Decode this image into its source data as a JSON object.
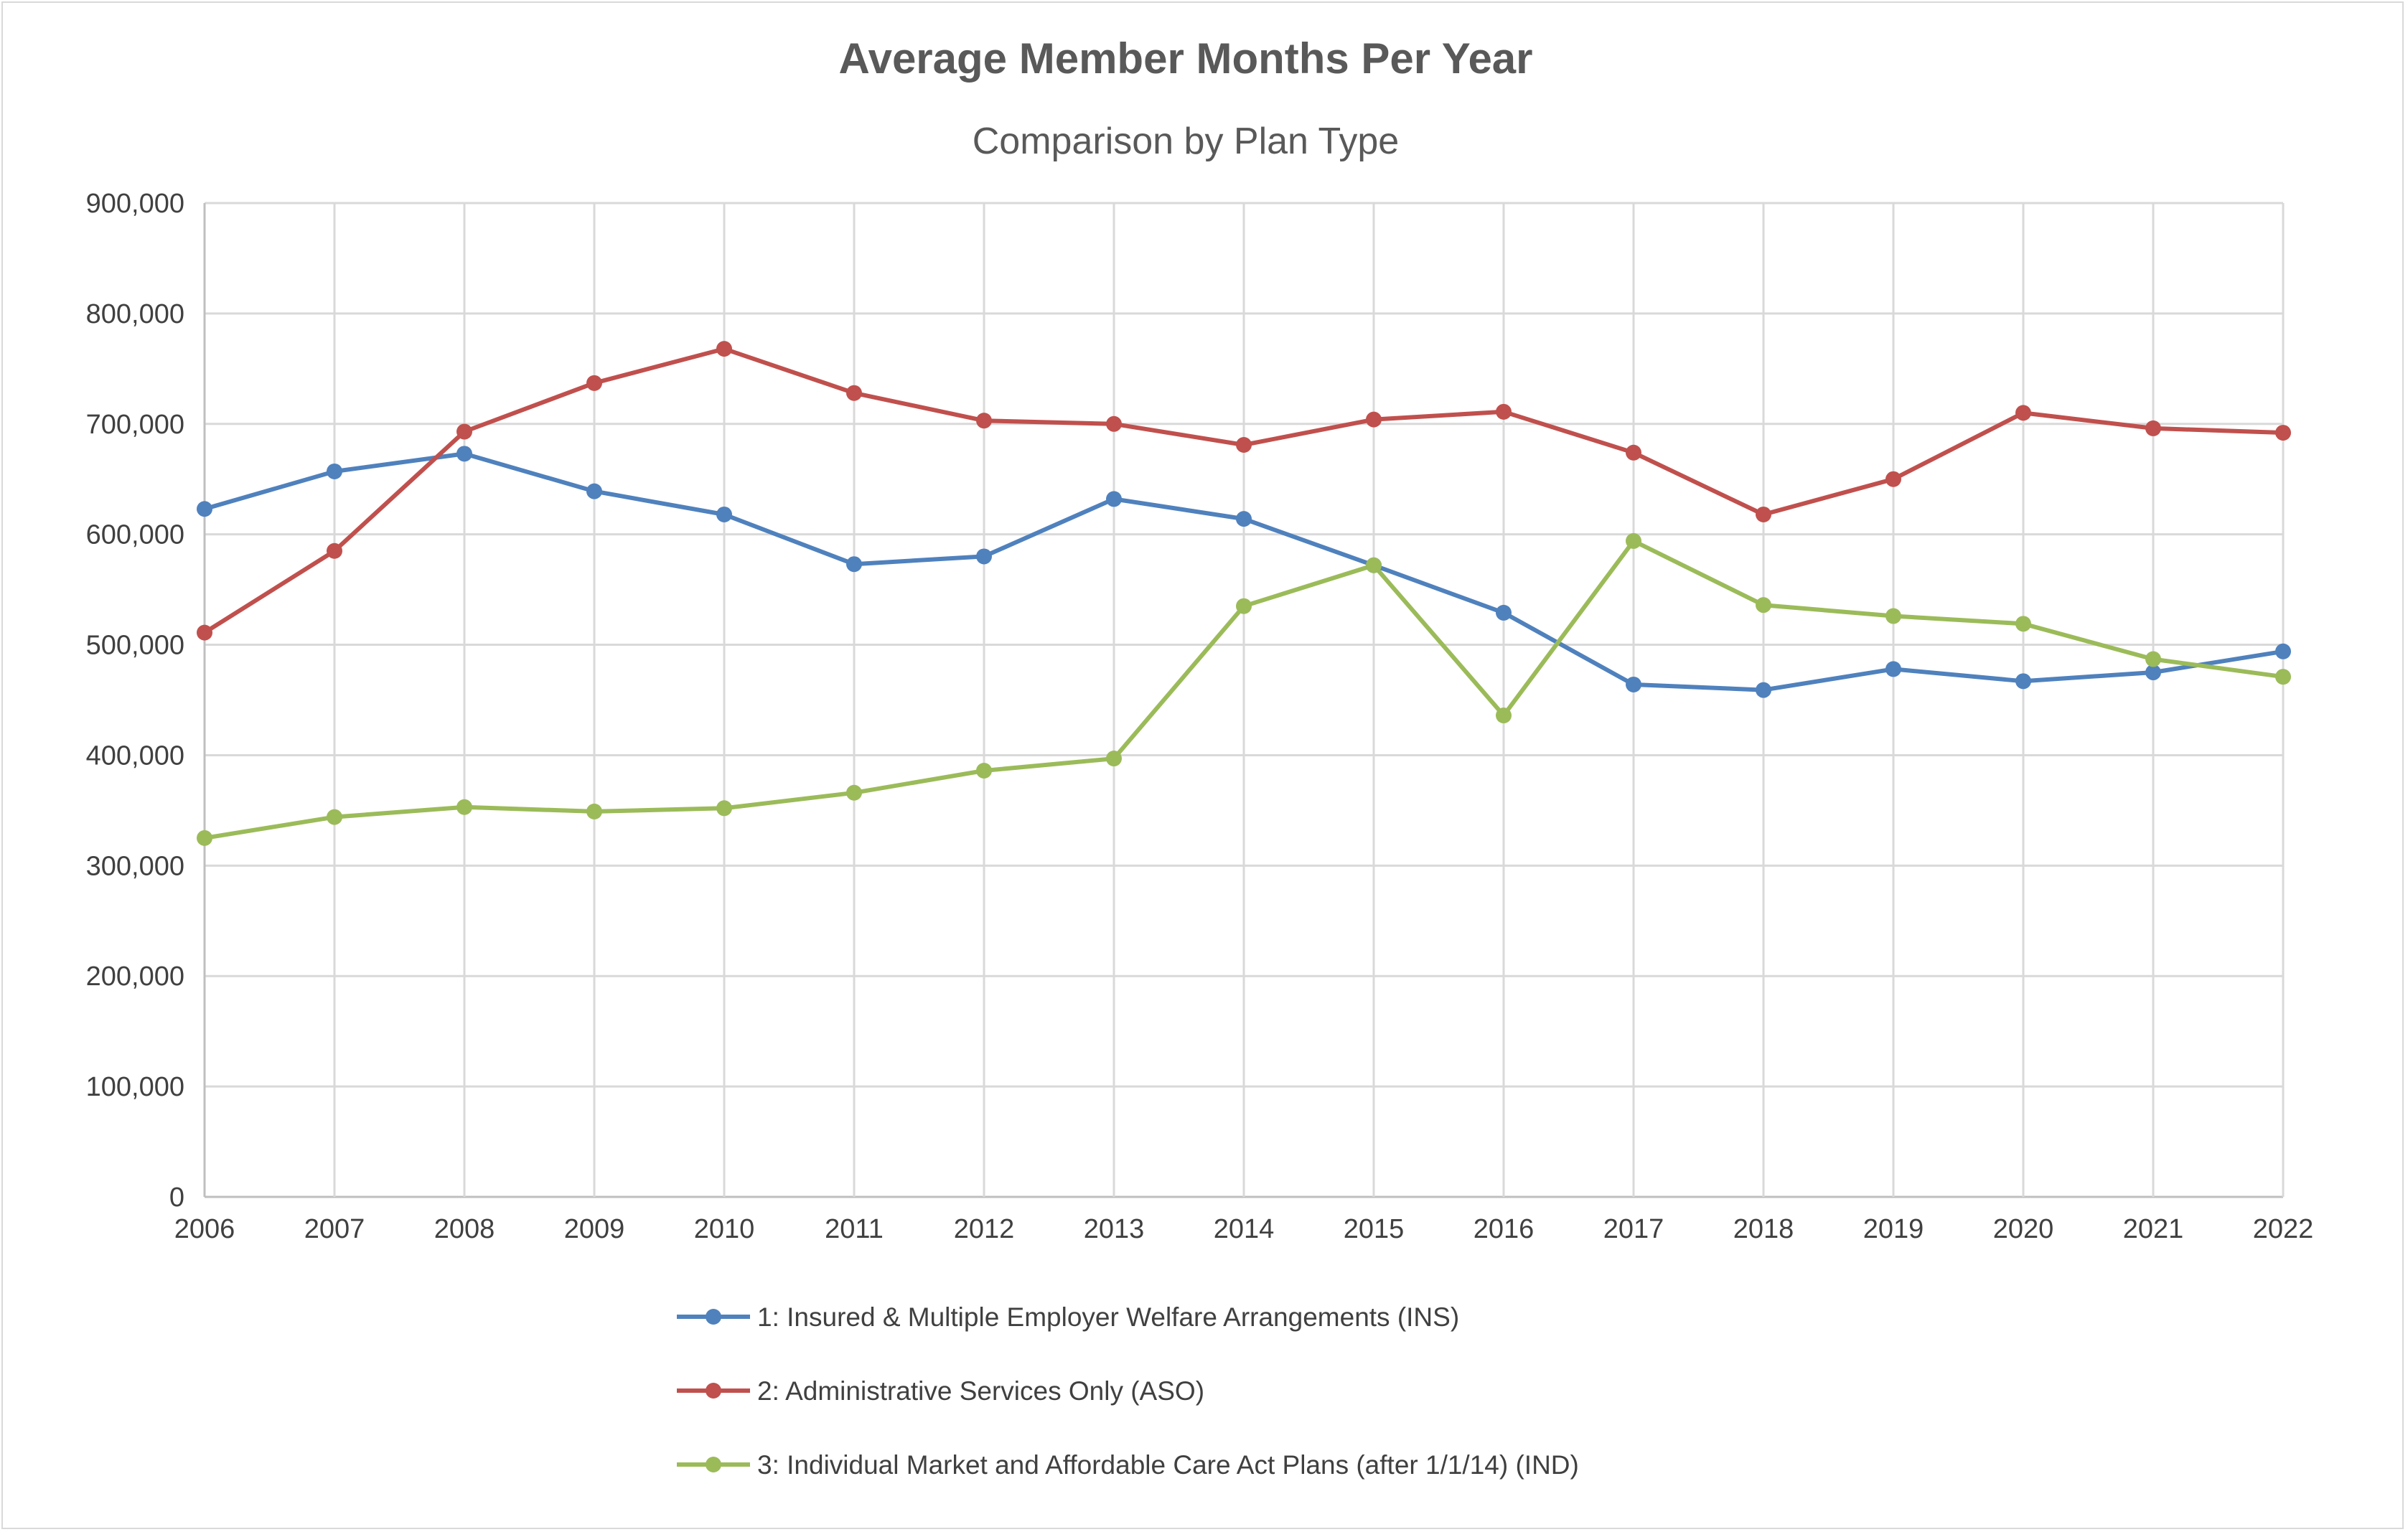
{
  "chart_data": {
    "type": "line",
    "title": "Average Member Months Per Year",
    "subtitle": "Comparison by Plan Type",
    "xlabel": "",
    "ylabel": "",
    "categories": [
      "2006",
      "2007",
      "2008",
      "2009",
      "2010",
      "2011",
      "2012",
      "2013",
      "2014",
      "2015",
      "2016",
      "2017",
      "2018",
      "2019",
      "2020",
      "2021",
      "2022"
    ],
    "ylim": [
      0,
      900000
    ],
    "y_ticks": [
      "0",
      "100,000",
      "200,000",
      "300,000",
      "400,000",
      "500,000",
      "600,000",
      "700,000",
      "800,000",
      "900,000"
    ],
    "y_tick_values": [
      0,
      100000,
      200000,
      300000,
      400000,
      500000,
      600000,
      700000,
      800000,
      900000
    ],
    "grid": true,
    "legend_position": "bottom",
    "series": [
      {
        "name": "1: Insured & Multiple Employer Welfare Arrangements (INS)",
        "color": "#4f81bd",
        "values": [
          623000,
          657000,
          673000,
          639000,
          618000,
          573000,
          580000,
          632000,
          614000,
          572000,
          529000,
          464000,
          459000,
          478000,
          467000,
          475000,
          494000
        ]
      },
      {
        "name": "2: Administrative Services Only (ASO)",
        "color": "#c0504d",
        "values": [
          511000,
          585000,
          693000,
          737000,
          768000,
          728000,
          703000,
          700000,
          681000,
          704000,
          711000,
          674000,
          618000,
          650000,
          710000,
          696000,
          692000
        ]
      },
      {
        "name": "3: Individual Market and Affordable Care Act Plans (after 1/1/14) (IND)",
        "color": "#9bbb59",
        "values": [
          325000,
          344000,
          353000,
          349000,
          352000,
          366000,
          386000,
          397000,
          535000,
          572000,
          436000,
          594000,
          536000,
          526000,
          519000,
          487000,
          471000
        ]
      }
    ]
  }
}
